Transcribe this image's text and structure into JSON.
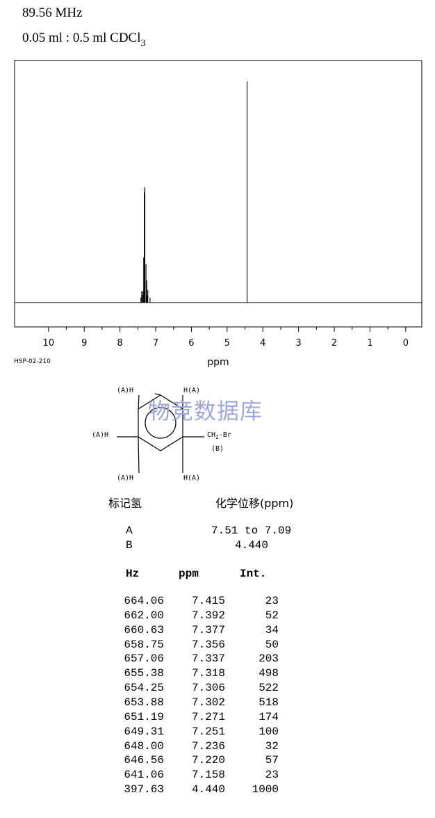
{
  "header": {
    "frequency": "89.56 MHz",
    "solvent_prefix": "0.05 ml : 0.5 ml CDCl",
    "solvent_sub": "3"
  },
  "chart_data": {
    "type": "line",
    "xlabel": "ppm",
    "xlim": [
      10.95,
      -0.45
    ],
    "x_reversed": true,
    "ticks": [
      10,
      9,
      8,
      7,
      6,
      5,
      4,
      3,
      2,
      1,
      0
    ],
    "peaks": [
      {
        "ppm": 7.415,
        "intensity": 23
      },
      {
        "ppm": 7.392,
        "intensity": 52
      },
      {
        "ppm": 7.377,
        "intensity": 34
      },
      {
        "ppm": 7.356,
        "intensity": 50
      },
      {
        "ppm": 7.337,
        "intensity": 203
      },
      {
        "ppm": 7.318,
        "intensity": 498
      },
      {
        "ppm": 7.306,
        "intensity": 522
      },
      {
        "ppm": 7.302,
        "intensity": 518
      },
      {
        "ppm": 7.271,
        "intensity": 174
      },
      {
        "ppm": 7.251,
        "intensity": 100
      },
      {
        "ppm": 7.236,
        "intensity": 32
      },
      {
        "ppm": 7.22,
        "intensity": 57
      },
      {
        "ppm": 7.158,
        "intensity": 23
      },
      {
        "ppm": 4.44,
        "intensity": 1000
      }
    ],
    "grid": false
  },
  "figure_code": "HSP-02-210",
  "structure": {
    "substituent": "CH",
    "substituent_sub": "2",
    "substituent_tail": "-Br",
    "label_a": "(A)H",
    "label_a_right": "H(A)",
    "label_b": "(B)"
  },
  "watermark": "物竞数据库",
  "assignment": {
    "label_header": "标记氢",
    "shift_header": "化学位移(ppm)",
    "rows": [
      {
        "label": "A",
        "shift": "7.51 to 7.09"
      },
      {
        "label": "B",
        "shift": "4.440"
      }
    ]
  },
  "peak_table": {
    "headers": [
      "Hz",
      "ppm",
      "Int."
    ],
    "rows": [
      [
        "664.06",
        "7.415",
        "23"
      ],
      [
        "662.00",
        "7.392",
        "52"
      ],
      [
        "660.63",
        "7.377",
        "34"
      ],
      [
        "658.75",
        "7.356",
        "50"
      ],
      [
        "657.06",
        "7.337",
        "203"
      ],
      [
        "655.38",
        "7.318",
        "498"
      ],
      [
        "654.25",
        "7.306",
        "522"
      ],
      [
        "653.88",
        "7.302",
        "518"
      ],
      [
        "651.19",
        "7.271",
        "174"
      ],
      [
        "649.31",
        "7.251",
        "100"
      ],
      [
        "648.00",
        "7.236",
        "32"
      ],
      [
        "646.56",
        "7.220",
        "57"
      ],
      [
        "641.06",
        "7.158",
        "23"
      ],
      [
        "397.63",
        "4.440",
        "1000"
      ]
    ]
  }
}
